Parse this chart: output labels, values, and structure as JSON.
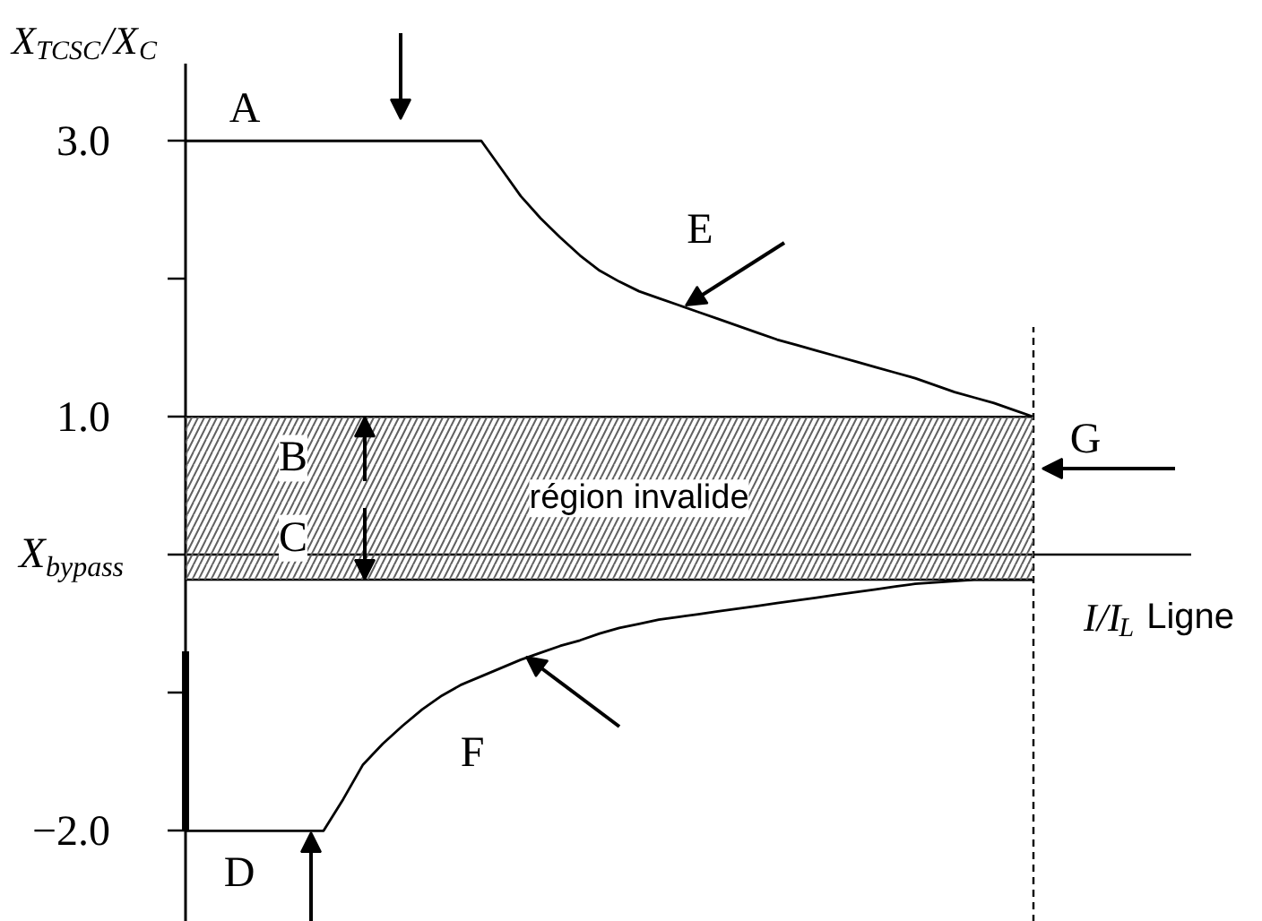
{
  "chart_data": {
    "type": "line",
    "xlabel": "I/I$_{L}$ Ligne",
    "ylabel": "X$_{TCSC}$/X$_{C}$",
    "categories": [
      null,
      null,
      null,
      null,
      null,
      null,
      null,
      null,
      null,
      null,
      null,
      null,
      null,
      null,
      null,
      null,
      null,
      null,
      null,
      null,
      null,
      null,
      null,
      null,
      null,
      null,
      null,
      null,
      null,
      null,
      null,
      null,
      null,
      null,
      null,
      null,
      null,
      null,
      null,
      null,
      null,
      null,
      null,
      null,
      null,
      null,
      null,
      null,
      null,
      null,
      null,
      null
    ],
    "ylim": [
      -2.66,
      3.56
    ],
    "yticks": [
      {
        "value": 3,
        "label": "3.0"
      },
      {
        "value": 2,
        "label": null
      },
      {
        "value": 1,
        "label": "1.0"
      },
      {
        "value": 0,
        "label": "X$_{bypass}$"
      },
      {
        "value": -1,
        "label": null
      },
      {
        "value": -2,
        "label": "−2.0"
      }
    ],
    "series": [
      {
        "color": "#000000",
        "values": [
          3.0,
          3.0,
          3.0,
          3.0,
          3.0,
          3.0,
          3.0,
          3.0,
          3.0,
          3.0,
          3.0,
          3.0,
          3.0,
          3.0,
          3.0,
          3.0,
          2.8,
          2.6,
          2.44,
          2.3,
          2.17,
          2.06,
          1.98,
          1.91,
          1.86,
          1.81,
          1.76,
          1.71,
          1.66,
          1.61,
          1.56,
          1.52,
          1.48,
          1.44,
          1.4,
          1.36,
          1.32,
          1.28,
          1.23,
          1.18,
          1.14,
          1.1,
          1.05,
          1.0,
          null,
          null,
          null,
          null,
          null,
          null,
          null,
          null
        ]
      },
      {
        "color": "#000000",
        "values": [
          -2.0,
          -2.0,
          -2.0,
          -2.0,
          -2.0,
          -2.0,
          -2.0,
          -2.0,
          -1.77,
          -1.52,
          -1.37,
          -1.24,
          -1.12,
          -1.02,
          -0.94,
          -0.88,
          -0.82,
          -0.76,
          -0.71,
          -0.66,
          -0.62,
          -0.57,
          -0.53,
          -0.5,
          -0.47,
          -0.45,
          -0.43,
          -0.41,
          -0.39,
          -0.37,
          -0.35,
          -0.33,
          -0.31,
          -0.29,
          -0.27,
          -0.25,
          -0.23,
          -0.21,
          -0.2,
          -0.19,
          -0.18,
          -0.18,
          -0.18,
          -0.18,
          null,
          null,
          null,
          null,
          null,
          null,
          null,
          null
        ]
      },
      {
        "type": "bar",
        "color": "#000000",
        "base": [
          -2.0,
          null,
          null,
          null,
          null,
          null,
          null,
          null,
          null,
          null,
          null,
          null,
          null,
          null,
          null,
          null,
          null,
          null,
          null,
          null,
          null,
          null,
          null,
          null,
          null,
          null,
          null,
          null,
          null,
          null,
          null,
          null,
          null,
          null,
          null,
          null,
          null,
          null,
          null,
          null,
          null,
          null,
          null,
          null,
          null,
          null,
          null,
          null,
          null,
          null,
          null,
          null
        ],
        "values": [
          1.3,
          null,
          null,
          null,
          null,
          null,
          null,
          null,
          null,
          null,
          null,
          null,
          null,
          null,
          null,
          null,
          null,
          null,
          null,
          null,
          null,
          null,
          null,
          null,
          null,
          null,
          null,
          null,
          null,
          null,
          null,
          null,
          null,
          null,
          null,
          null,
          null,
          null,
          null,
          null,
          null,
          null,
          null,
          null,
          null,
          null,
          null,
          null,
          null,
          null,
          null,
          null
        ]
      }
    ],
    "bands": [
      {
        "axis": "y",
        "from": -0.18,
        "to": 1.0,
        "label": "région invalide",
        "color": "#606060"
      }
    ],
    "annotations": [
      {
        "text": "A",
        "y": 3.23
      },
      {
        "text": "B",
        "y": 0.7
      },
      {
        "text": "C",
        "y": 0.12
      },
      {
        "text": "D",
        "y": -2.31
      },
      {
        "text": "E",
        "y": 2.35
      },
      {
        "text": "F",
        "y": -1.44
      },
      {
        "text": "G",
        "y": 0.83
      }
    ]
  }
}
